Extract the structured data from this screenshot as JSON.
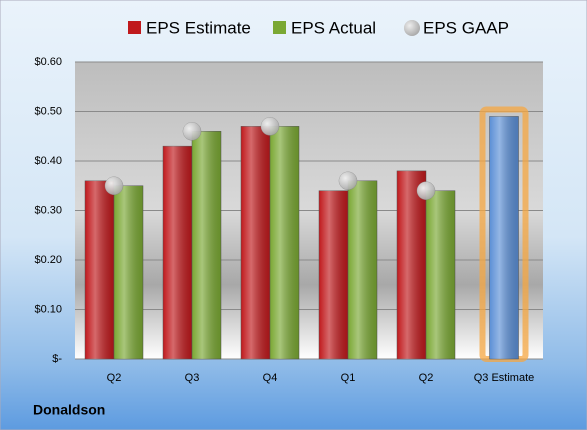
{
  "chart_data": {
    "type": "bar",
    "company": "Donaldson",
    "categories": [
      "Q2",
      "Q3",
      "Q4",
      "Q1",
      "Q2",
      "Q3 Estimate"
    ],
    "series": [
      {
        "name": "EPS Estimate",
        "color": "#c0191c",
        "colors": [
          "#c0191c",
          "#c0191c",
          "#c0191c",
          "#c0191c",
          "#c0191c",
          "#5b8fd6"
        ],
        "values": [
          0.36,
          0.43,
          0.47,
          0.34,
          0.38,
          0.49
        ]
      },
      {
        "name": "EPS Actual",
        "color": "#7aa833",
        "values": [
          0.35,
          0.46,
          0.47,
          0.36,
          0.34,
          null
        ]
      },
      {
        "name": "EPS GAAP",
        "color": "#a8a8a8",
        "marker": "circle",
        "values": [
          0.35,
          0.46,
          0.47,
          0.36,
          0.34,
          null
        ]
      }
    ],
    "ylim": [
      0,
      0.6
    ],
    "yticks": [
      {
        "value": 0,
        "label": "$-"
      },
      {
        "value": 0.1,
        "label": "$0.10"
      },
      {
        "value": 0.2,
        "label": "$0.20"
      },
      {
        "value": 0.3,
        "label": "$0.30"
      },
      {
        "value": 0.4,
        "label": "$0.40"
      },
      {
        "value": 0.5,
        "label": "$0.50"
      },
      {
        "value": 0.6,
        "label": "$0.60"
      }
    ],
    "grid": true
  }
}
